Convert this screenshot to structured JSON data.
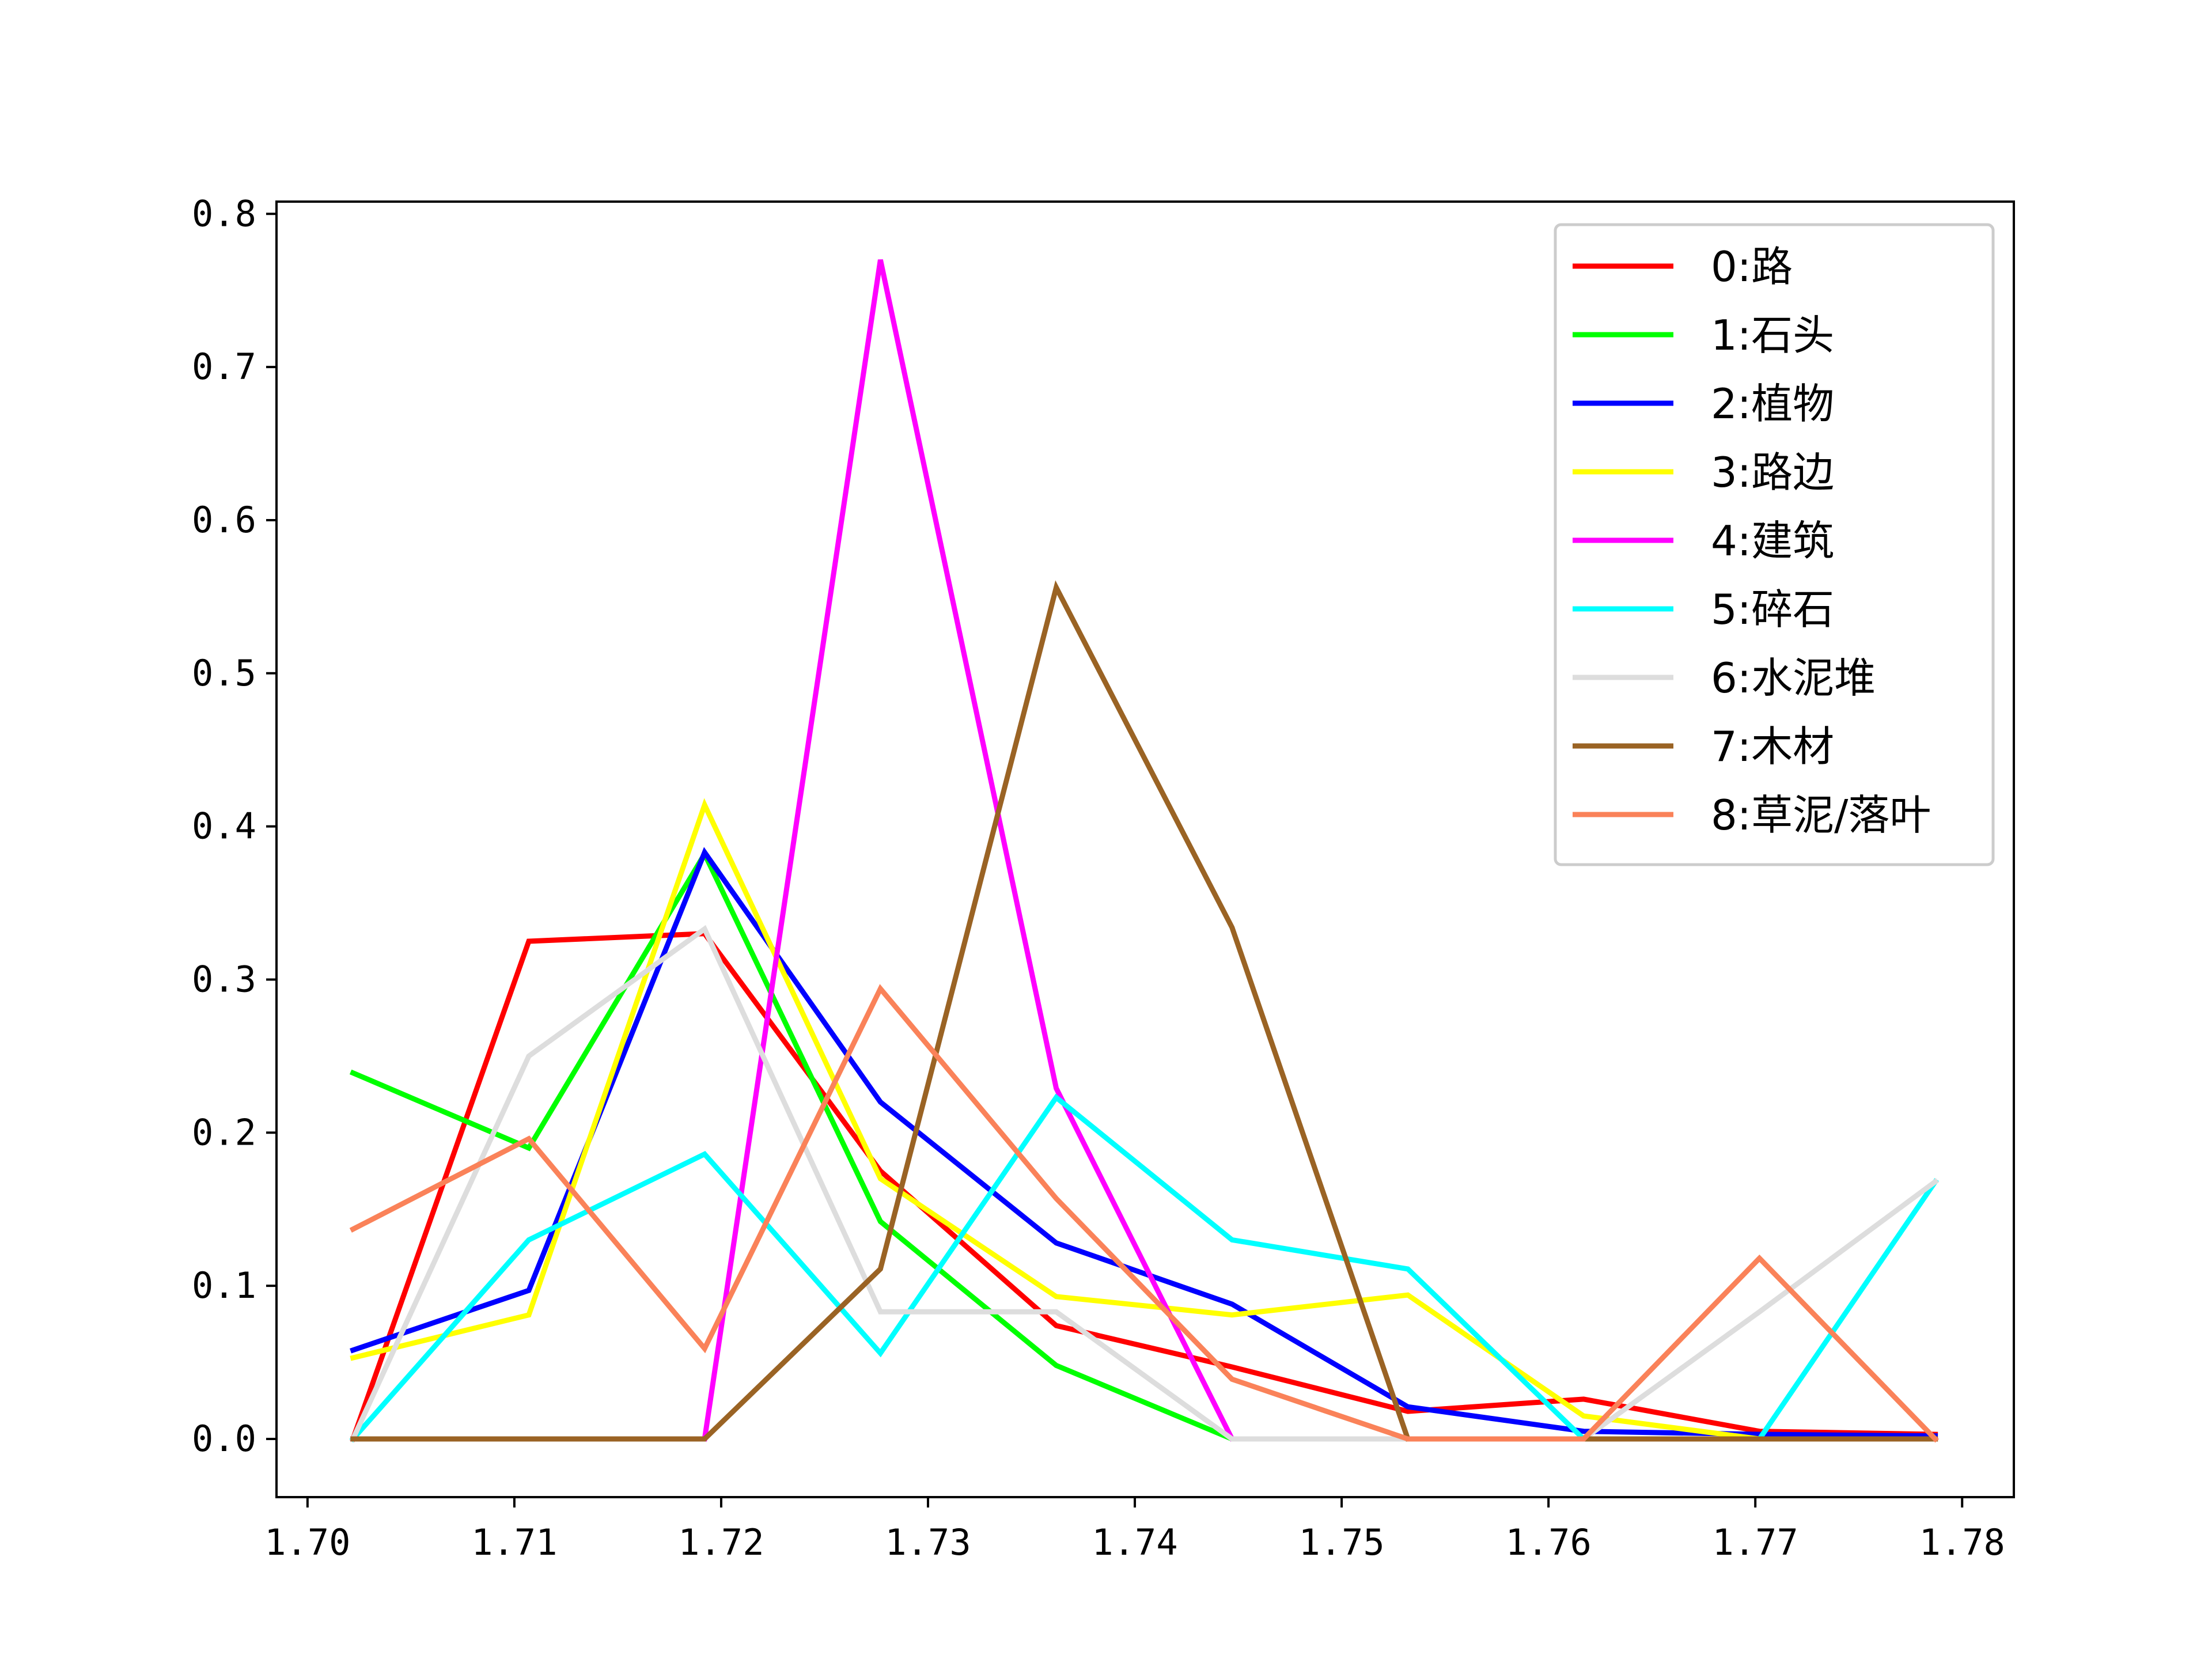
{
  "chart_data": {
    "type": "line",
    "title": "",
    "xlabel": "",
    "ylabel": "",
    "x": [
      1.7022,
      1.7107,
      1.7192,
      1.7277,
      1.7362,
      1.7447,
      1.7532,
      1.7617,
      1.7702,
      1.7787
    ],
    "xlim": [
      1.6985,
      1.7825
    ],
    "ylim": [
      -0.038,
      0.808
    ],
    "x_ticks": [
      1.7,
      1.71,
      1.72,
      1.73,
      1.74,
      1.75,
      1.76,
      1.77,
      1.78
    ],
    "x_tick_labels": [
      "1.70",
      "1.71",
      "1.72",
      "1.73",
      "1.74",
      "1.75",
      "1.76",
      "1.77",
      "1.78"
    ],
    "y_ticks": [
      0.0,
      0.1,
      0.2,
      0.3,
      0.4,
      0.5,
      0.6,
      0.7,
      0.8
    ],
    "y_tick_labels": [
      "0.0",
      "0.1",
      "0.2",
      "0.3",
      "0.4",
      "0.5",
      "0.6",
      "0.7",
      "0.8"
    ],
    "grid": false,
    "legend_position": "top-right",
    "series": [
      {
        "name": "0:路",
        "color": "#ff0000",
        "values": [
          0.0,
          0.325,
          0.33,
          0.175,
          0.074,
          0.047,
          0.018,
          0.026,
          0.005,
          0.003
        ]
      },
      {
        "name": "1:石头",
        "color": "#00ff00",
        "values": [
          0.239,
          0.19,
          0.382,
          0.142,
          0.048,
          0.0,
          0.0,
          0.0,
          0.0,
          0.0
        ]
      },
      {
        "name": "2:植物",
        "color": "#0000ff",
        "values": [
          0.058,
          0.097,
          0.383,
          0.22,
          0.128,
          0.088,
          0.021,
          0.005,
          0.003,
          0.002
        ]
      },
      {
        "name": "3:路边",
        "color": "#ffff00",
        "values": [
          0.053,
          0.081,
          0.414,
          0.17,
          0.093,
          0.081,
          0.094,
          0.015,
          0.0,
          0.0
        ]
      },
      {
        "name": "4:建筑",
        "color": "#ff00ff",
        "values": [
          0.0,
          0.0,
          0.0,
          0.77,
          0.229,
          0.0,
          0.0,
          0.0,
          0.0,
          0.0
        ]
      },
      {
        "name": "5:碎石",
        "color": "#00ffff",
        "values": [
          0.0,
          0.13,
          0.186,
          0.056,
          0.223,
          0.13,
          0.111,
          0.0,
          0.0,
          0.168
        ]
      },
      {
        "name": "6:水泥堆",
        "color": "#dddddd",
        "values": [
          0.0,
          0.25,
          0.333,
          0.083,
          0.083,
          0.0,
          0.0,
          0.0,
          0.083,
          0.168
        ]
      },
      {
        "name": "7:木材",
        "color": "#9a6324",
        "values": [
          0.0,
          0.0,
          0.0,
          0.111,
          0.556,
          0.334,
          0.0,
          0.0,
          0.0,
          0.0
        ]
      },
      {
        "name": "8:草泥/落叶",
        "color": "#fa8259",
        "values": [
          0.137,
          0.196,
          0.059,
          0.294,
          0.157,
          0.039,
          0.0,
          0.0,
          0.118,
          0.0
        ]
      }
    ]
  }
}
